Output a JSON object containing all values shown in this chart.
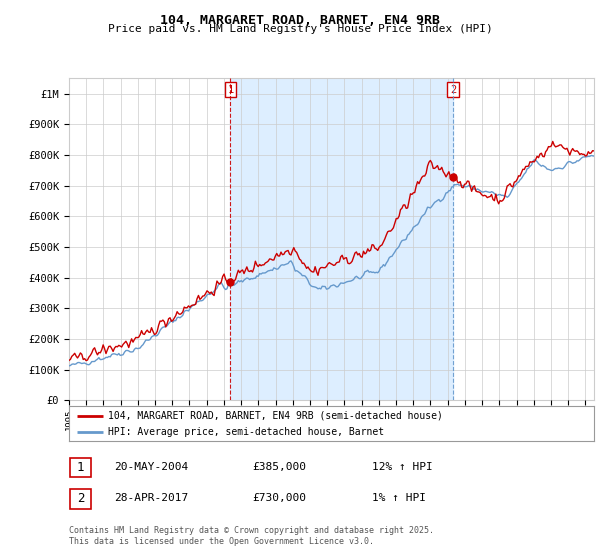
{
  "title": "104, MARGARET ROAD, BARNET, EN4 9RB",
  "subtitle": "Price paid vs. HM Land Registry's House Price Index (HPI)",
  "ylabel_ticks": [
    "£0",
    "£100K",
    "£200K",
    "£300K",
    "£400K",
    "£500K",
    "£600K",
    "£700K",
    "£800K",
    "£900K",
    "£1M"
  ],
  "ytick_vals": [
    0,
    100000,
    200000,
    300000,
    400000,
    500000,
    600000,
    700000,
    800000,
    900000,
    1000000
  ],
  "ylim": [
    0,
    1050000
  ],
  "xlim_start": 1995.0,
  "xlim_end": 2025.5,
  "xtick_years": [
    1995,
    1996,
    1997,
    1998,
    1999,
    2000,
    2001,
    2002,
    2003,
    2004,
    2005,
    2006,
    2007,
    2008,
    2009,
    2010,
    2011,
    2012,
    2013,
    2014,
    2015,
    2016,
    2017,
    2018,
    2019,
    2020,
    2021,
    2022,
    2023,
    2024,
    2025
  ],
  "sale1_x": 2004.38,
  "sale1_y": 385000,
  "sale2_x": 2017.32,
  "sale2_y": 730000,
  "legend_red_label": "104, MARGARET ROAD, BARNET, EN4 9RB (semi-detached house)",
  "legend_blue_label": "HPI: Average price, semi-detached house, Barnet",
  "ann1_date": "20-MAY-2004",
  "ann1_price": "£385,000",
  "ann1_hpi": "12% ↑ HPI",
  "ann2_date": "28-APR-2017",
  "ann2_price": "£730,000",
  "ann2_hpi": "1% ↑ HPI",
  "footer": "Contains HM Land Registry data © Crown copyright and database right 2025.\nThis data is licensed under the Open Government Licence v3.0.",
  "red_color": "#cc0000",
  "blue_color": "#6699cc",
  "shade_color": "#ddeeff",
  "bg_color": "#ffffff",
  "grid_color": "#cccccc"
}
